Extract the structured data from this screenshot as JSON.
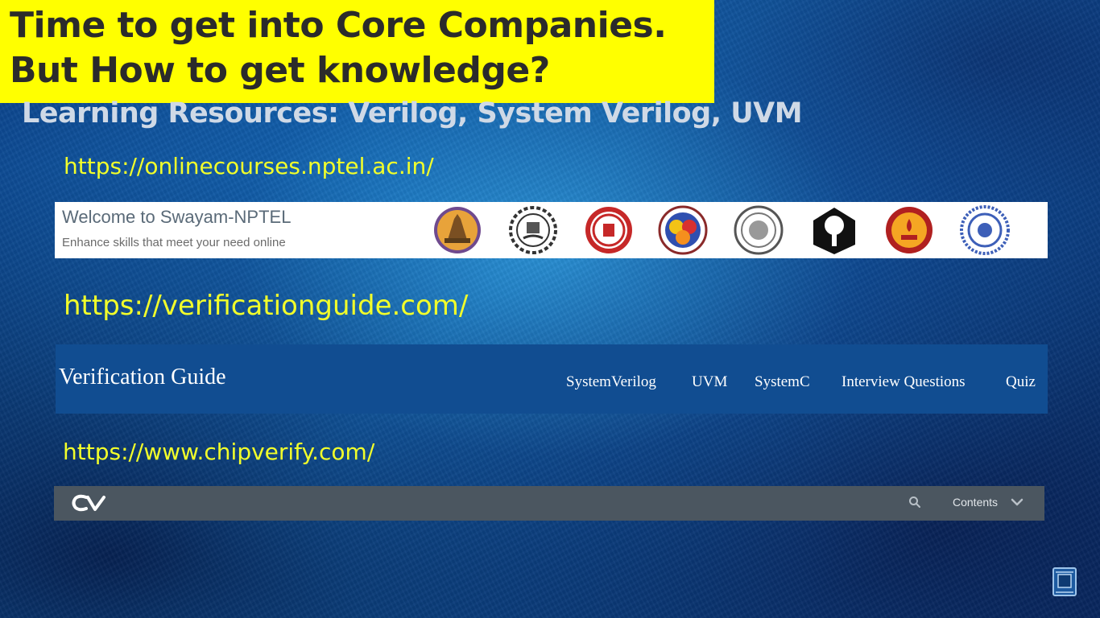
{
  "banner": {
    "line1": "Time to get into Core Companies.",
    "line2": "But How to get knowledge?"
  },
  "subtitle": "Learning Resources: Verilog, System Verilog, UVM",
  "links": {
    "nptel": "https://onlinecourses.nptel.ac.in/",
    "verificationguide": "https://verificationguide.com/",
    "chipverify": "https://www.chipverify.com/"
  },
  "nptel_card": {
    "title": "Welcome to Swayam-NPTEL",
    "tagline": "Enhance skills that meet your need online",
    "logos": [
      "iit-delhi-logo",
      "iit-bombay-logo",
      "iit-kanpur-logo",
      "iit-guwahati-logo",
      "iit-madras-logo",
      "iit-kharagpur-logo",
      "iit-roorkee-logo",
      "iisc-bangalore-logo"
    ]
  },
  "verification_guide": {
    "brand": "Verification Guide",
    "nav": [
      "SystemVerilog",
      "UVM",
      "SystemC",
      "Interview Questions",
      "Quiz"
    ]
  },
  "chipverify": {
    "logo_text": "CV",
    "contents_label": "Contents",
    "icons": [
      "search-icon",
      "chevron-down-icon"
    ]
  },
  "colors": {
    "banner_bg": "#ffff00",
    "link": "#f2ff2a",
    "vg_bar": "#114d91",
    "cv_bar": "#4b5660"
  }
}
